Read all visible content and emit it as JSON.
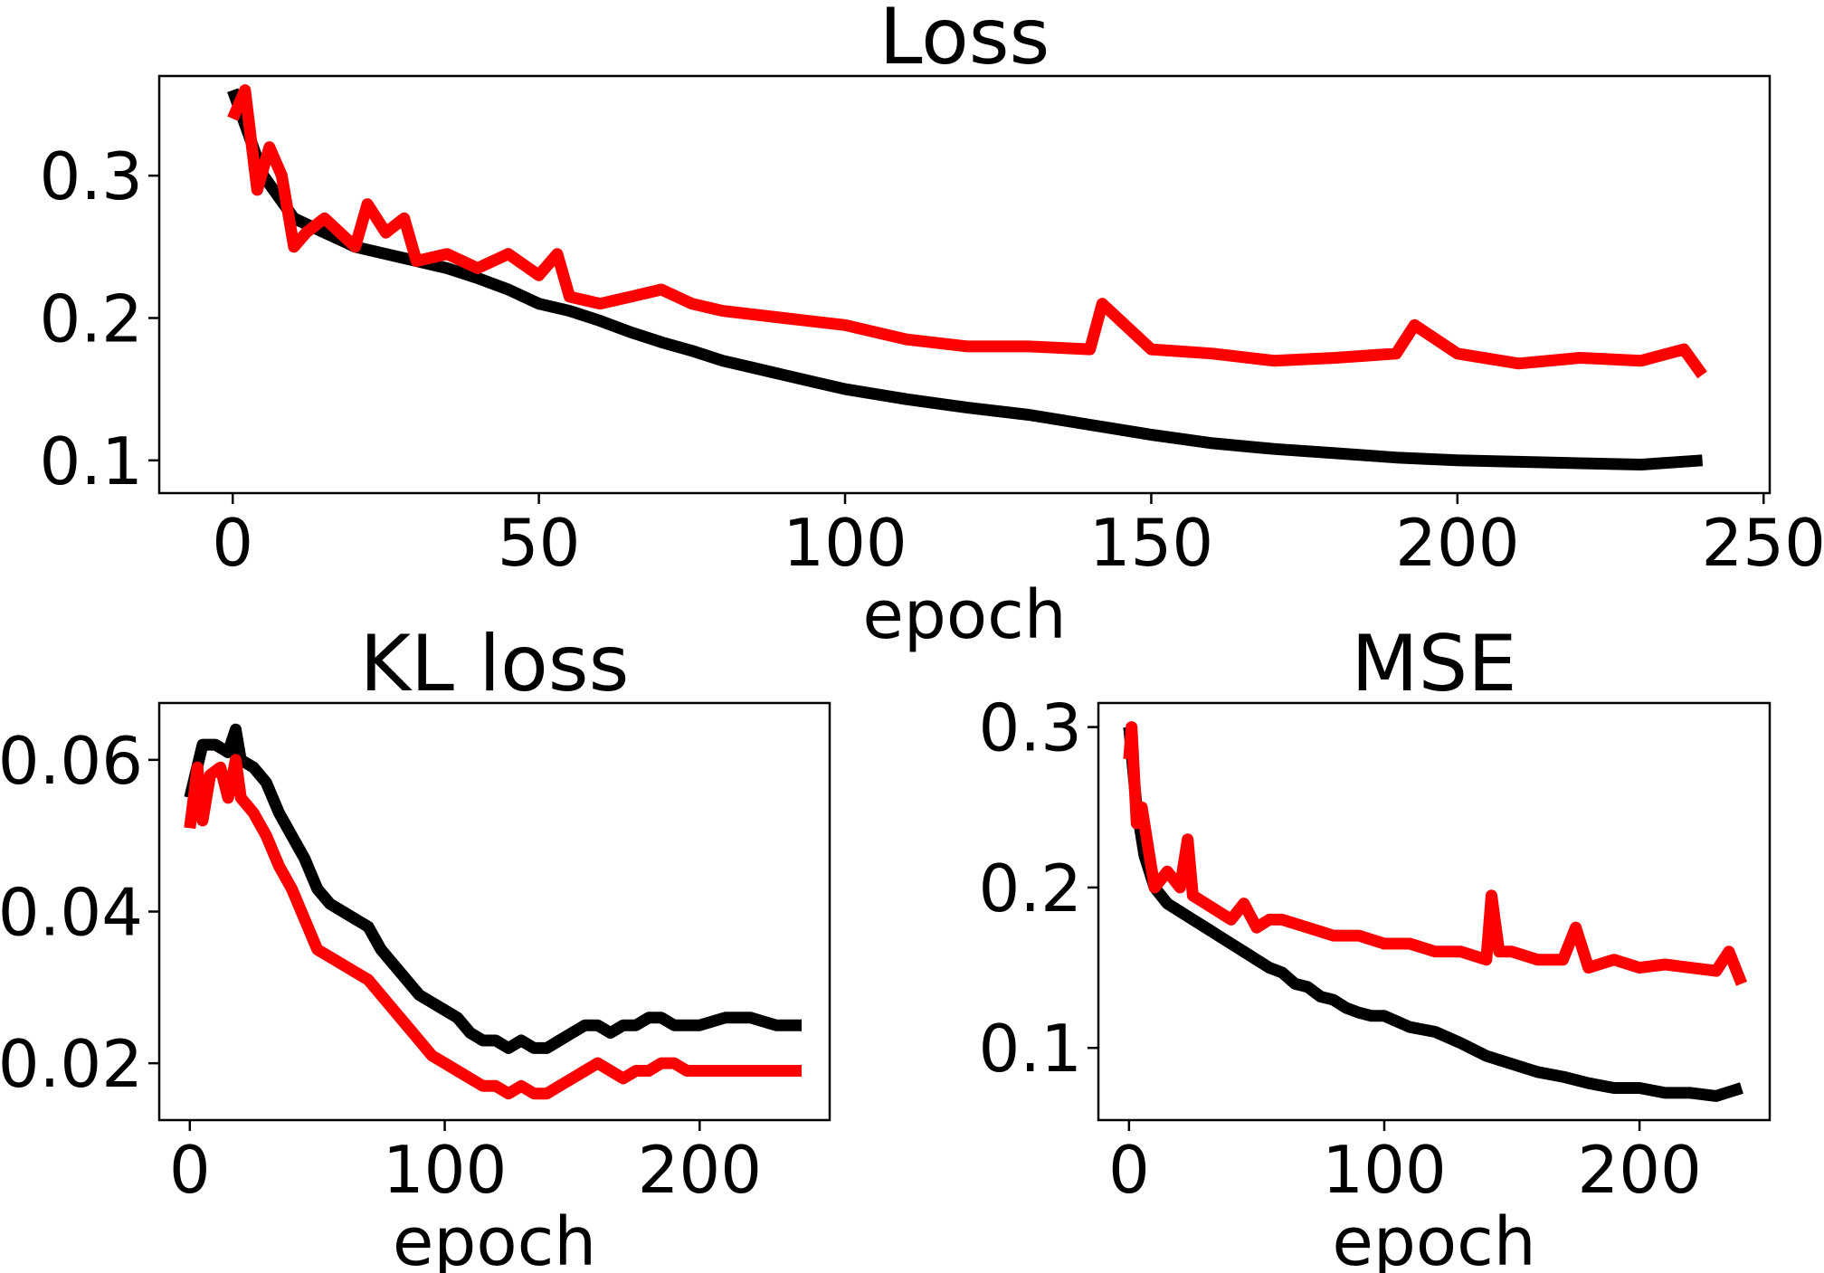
{
  "colors": {
    "series_a": "#000000",
    "series_b": "#ff0000"
  },
  "chart_data": [
    {
      "type": "line",
      "title": "Loss",
      "xlabel": "epoch",
      "ylabel": "",
      "xlim": [
        -12,
        251
      ],
      "ylim": [
        0.077,
        0.37
      ],
      "xticks": [
        0,
        50,
        100,
        150,
        200,
        250
      ],
      "xtick_labels": [
        "0",
        "50",
        "100",
        "150",
        "200",
        "250"
      ],
      "yticks": [
        0.1,
        0.2,
        0.3
      ],
      "ytick_labels": [
        "0.1",
        "0.2",
        "0.3"
      ],
      "grid": false,
      "series": [
        {
          "color": "#000000",
          "x": [
            0,
            5,
            10,
            15,
            20,
            25,
            30,
            35,
            40,
            45,
            50,
            55,
            60,
            65,
            70,
            75,
            80,
            85,
            90,
            95,
            100,
            110,
            120,
            130,
            140,
            150,
            160,
            170,
            180,
            190,
            200,
            210,
            220,
            230,
            240
          ],
          "y": [
            0.36,
            0.3,
            0.27,
            0.26,
            0.25,
            0.245,
            0.24,
            0.235,
            0.228,
            0.22,
            0.21,
            0.205,
            0.198,
            0.19,
            0.183,
            0.177,
            0.17,
            0.165,
            0.16,
            0.155,
            0.15,
            0.143,
            0.137,
            0.132,
            0.125,
            0.118,
            0.112,
            0.108,
            0.105,
            0.102,
            0.1,
            0.099,
            0.098,
            0.097,
            0.1
          ]
        },
        {
          "color": "#ff0000",
          "x": [
            0,
            2,
            4,
            6,
            8,
            10,
            12,
            15,
            20,
            22,
            25,
            28,
            30,
            35,
            40,
            45,
            50,
            53,
            55,
            60,
            65,
            70,
            75,
            80,
            90,
            100,
            110,
            120,
            130,
            140,
            142,
            150,
            160,
            170,
            180,
            190,
            193,
            200,
            210,
            220,
            230,
            237,
            240
          ],
          "y": [
            0.34,
            0.36,
            0.29,
            0.32,
            0.3,
            0.25,
            0.26,
            0.27,
            0.25,
            0.28,
            0.26,
            0.27,
            0.24,
            0.245,
            0.235,
            0.245,
            0.23,
            0.245,
            0.215,
            0.21,
            0.215,
            0.22,
            0.21,
            0.205,
            0.2,
            0.195,
            0.185,
            0.18,
            0.18,
            0.178,
            0.21,
            0.178,
            0.175,
            0.17,
            0.172,
            0.175,
            0.195,
            0.175,
            0.168,
            0.172,
            0.17,
            0.178,
            0.16
          ]
        }
      ]
    },
    {
      "type": "line",
      "title": "KL loss",
      "xlabel": "epoch",
      "ylabel": "",
      "xlim": [
        -12,
        251
      ],
      "ylim": [
        0.0125,
        0.0675
      ],
      "xticks": [
        0,
        100,
        200
      ],
      "xtick_labels": [
        "0",
        "100",
        "200"
      ],
      "yticks": [
        0.02,
        0.04,
        0.06
      ],
      "ytick_labels": [
        "0.02",
        "0.04",
        "0.06"
      ],
      "grid": false,
      "series": [
        {
          "color": "#000000",
          "x": [
            0,
            5,
            10,
            15,
            18,
            20,
            25,
            30,
            35,
            40,
            45,
            50,
            55,
            60,
            65,
            70,
            75,
            80,
            85,
            90,
            95,
            100,
            105,
            110,
            115,
            120,
            125,
            130,
            135,
            140,
            145,
            150,
            155,
            160,
            165,
            170,
            175,
            180,
            185,
            190,
            195,
            200,
            210,
            220,
            230,
            240
          ],
          "y": [
            0.055,
            0.062,
            0.062,
            0.061,
            0.064,
            0.06,
            0.059,
            0.057,
            0.053,
            0.05,
            0.047,
            0.043,
            0.041,
            0.04,
            0.039,
            0.038,
            0.035,
            0.033,
            0.031,
            0.029,
            0.028,
            0.027,
            0.026,
            0.024,
            0.023,
            0.023,
            0.022,
            0.023,
            0.022,
            0.022,
            0.023,
            0.024,
            0.025,
            0.025,
            0.024,
            0.025,
            0.025,
            0.026,
            0.026,
            0.025,
            0.025,
            0.025,
            0.026,
            0.026,
            0.025,
            0.025
          ]
        },
        {
          "color": "#ff0000",
          "x": [
            0,
            3,
            5,
            8,
            12,
            15,
            18,
            20,
            25,
            30,
            35,
            40,
            45,
            50,
            55,
            60,
            65,
            70,
            75,
            80,
            85,
            90,
            95,
            100,
            105,
            110,
            115,
            120,
            125,
            130,
            135,
            140,
            145,
            150,
            155,
            160,
            165,
            170,
            175,
            180,
            185,
            190,
            195,
            200,
            210,
            220,
            230,
            240
          ],
          "y": [
            0.051,
            0.059,
            0.052,
            0.058,
            0.059,
            0.055,
            0.06,
            0.055,
            0.053,
            0.05,
            0.046,
            0.043,
            0.039,
            0.035,
            0.034,
            0.033,
            0.032,
            0.031,
            0.029,
            0.027,
            0.025,
            0.023,
            0.021,
            0.02,
            0.019,
            0.018,
            0.017,
            0.017,
            0.016,
            0.017,
            0.016,
            0.016,
            0.017,
            0.018,
            0.019,
            0.02,
            0.019,
            0.018,
            0.019,
            0.019,
            0.02,
            0.02,
            0.019,
            0.019,
            0.019,
            0.019,
            0.019,
            0.019
          ]
        }
      ]
    },
    {
      "type": "line",
      "title": "MSE",
      "xlabel": "epoch",
      "ylabel": "",
      "xlim": [
        -12,
        251
      ],
      "ylim": [
        0.055,
        0.315
      ],
      "xticks": [
        0,
        100,
        200
      ],
      "xtick_labels": [
        "0",
        "100",
        "200"
      ],
      "yticks": [
        0.1,
        0.2,
        0.3
      ],
      "ytick_labels": [
        "0.1",
        "0.2",
        "0.3"
      ],
      "grid": false,
      "series": [
        {
          "color": "#000000",
          "x": [
            0,
            3,
            6,
            10,
            15,
            20,
            25,
            30,
            35,
            40,
            45,
            50,
            55,
            60,
            65,
            70,
            75,
            80,
            85,
            90,
            95,
            100,
            110,
            120,
            130,
            140,
            150,
            160,
            170,
            180,
            190,
            200,
            210,
            220,
            230,
            240
          ],
          "y": [
            0.3,
            0.25,
            0.22,
            0.2,
            0.19,
            0.185,
            0.18,
            0.175,
            0.17,
            0.165,
            0.16,
            0.155,
            0.15,
            0.147,
            0.14,
            0.138,
            0.132,
            0.13,
            0.125,
            0.122,
            0.12,
            0.12,
            0.113,
            0.11,
            0.103,
            0.095,
            0.09,
            0.085,
            0.082,
            0.078,
            0.075,
            0.075,
            0.072,
            0.072,
            0.07,
            0.075
          ]
        },
        {
          "color": "#ff0000",
          "x": [
            0,
            1,
            3,
            5,
            8,
            10,
            15,
            20,
            23,
            25,
            30,
            35,
            40,
            45,
            50,
            55,
            60,
            70,
            80,
            90,
            100,
            110,
            120,
            130,
            140,
            142,
            145,
            150,
            160,
            170,
            175,
            180,
            190,
            200,
            210,
            220,
            230,
            235,
            240
          ],
          "y": [
            0.28,
            0.3,
            0.24,
            0.25,
            0.22,
            0.2,
            0.21,
            0.2,
            0.23,
            0.195,
            0.19,
            0.185,
            0.18,
            0.19,
            0.175,
            0.18,
            0.18,
            0.175,
            0.17,
            0.17,
            0.165,
            0.165,
            0.16,
            0.16,
            0.155,
            0.195,
            0.16,
            0.16,
            0.155,
            0.155,
            0.175,
            0.15,
            0.155,
            0.15,
            0.152,
            0.15,
            0.148,
            0.16,
            0.14
          ]
        }
      ]
    }
  ]
}
